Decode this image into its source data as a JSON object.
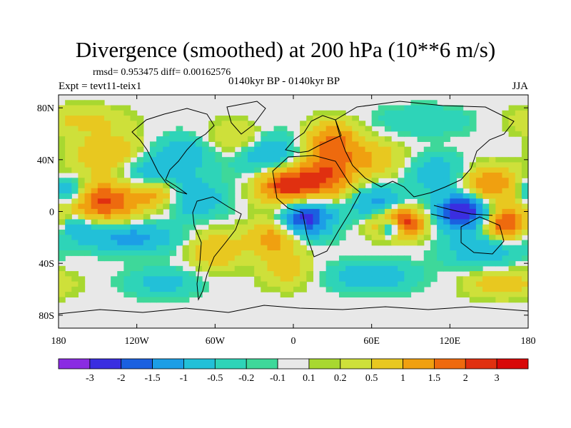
{
  "chart_data": {
    "type": "heatmap",
    "title": "Divergence (smoothed) at 200 hPa (10**6 m/s)",
    "stats_text": "rmsd= 0.953475 diff= 0.00162576",
    "experiment": "Expt = tevt11-teix1",
    "period": "0140kyr BP - 0140kyr BP",
    "season": "JJA",
    "xlim": [
      -180,
      180
    ],
    "ylim": [
      -90,
      90
    ],
    "x_ticks": [
      {
        "value": -180,
        "label": "180"
      },
      {
        "value": -120,
        "label": "120W"
      },
      {
        "value": -60,
        "label": "60W"
      },
      {
        "value": 0,
        "label": "0"
      },
      {
        "value": 60,
        "label": "60E"
      },
      {
        "value": 120,
        "label": "120E"
      },
      {
        "value": 180,
        "label": "180"
      }
    ],
    "y_ticks": [
      {
        "value": 80,
        "label": "80N"
      },
      {
        "value": 40,
        "label": "40N"
      },
      {
        "value": 0,
        "label": "0"
      },
      {
        "value": -40,
        "label": "40S"
      },
      {
        "value": -80,
        "label": "80S"
      }
    ],
    "colorbar": {
      "colors": [
        "#8a2be2",
        "#3a2ee0",
        "#1a60e0",
        "#1c9ee6",
        "#22c0d8",
        "#2ed4b8",
        "#3ed89a",
        "#e8e8e8",
        "#a8d830",
        "#cee03a",
        "#e8c820",
        "#f0a010",
        "#ee6a0e",
        "#e03010",
        "#d80808"
      ],
      "labels": [
        "-3",
        "-2",
        "-1.5",
        "-1",
        "-0.5",
        "-0.2",
        "-0.1",
        "0.1",
        "0.2",
        "0.5",
        "1",
        "1.5",
        "2",
        "3"
      ]
    },
    "features": [
      {
        "lon": -150,
        "lat": 8,
        "v": 2.2,
        "sx": 22,
        "sy": 12
      },
      {
        "lon": -173,
        "lat": 15,
        "v": -1.8,
        "sx": 12,
        "sy": 8
      },
      {
        "lon": -172,
        "lat": -10,
        "v": -1.4,
        "sx": 14,
        "sy": 8
      },
      {
        "lon": -140,
        "lat": 45,
        "v": 1.0,
        "sx": 20,
        "sy": 10
      },
      {
        "lon": -110,
        "lat": 30,
        "v": -1.0,
        "sx": 18,
        "sy": 10
      },
      {
        "lon": -105,
        "lat": 15,
        "v": 1.2,
        "sx": 12,
        "sy": 8
      },
      {
        "lon": -125,
        "lat": -20,
        "v": -1.3,
        "sx": 24,
        "sy": 8
      },
      {
        "lon": -75,
        "lat": 10,
        "v": -1.0,
        "sx": 16,
        "sy": 10
      },
      {
        "lon": -85,
        "lat": 45,
        "v": -0.8,
        "sx": 18,
        "sy": 10
      },
      {
        "lon": -40,
        "lat": 55,
        "v": 0.8,
        "sx": 18,
        "sy": 10
      },
      {
        "lon": -20,
        "lat": 45,
        "v": -1.2,
        "sx": 18,
        "sy": 12
      },
      {
        "lon": -5,
        "lat": 20,
        "v": 2.3,
        "sx": 16,
        "sy": 10
      },
      {
        "lon": 25,
        "lat": 28,
        "v": 1.8,
        "sx": 16,
        "sy": 12
      },
      {
        "lon": 10,
        "lat": -5,
        "v": -2.3,
        "sx": 14,
        "sy": 10
      },
      {
        "lon": -15,
        "lat": -20,
        "v": 1.3,
        "sx": 14,
        "sy": 10
      },
      {
        "lon": 30,
        "lat": 55,
        "v": 1.6,
        "sx": 14,
        "sy": 10
      },
      {
        "lon": 60,
        "lat": 40,
        "v": 0.9,
        "sx": 18,
        "sy": 10
      },
      {
        "lon": 65,
        "lat": 5,
        "v": -1.4,
        "sx": 14,
        "sy": 10
      },
      {
        "lon": 80,
        "lat": -8,
        "v": 2.8,
        "sx": 14,
        "sy": 8
      },
      {
        "lon": 75,
        "lat": -12,
        "v": -2.5,
        "sx": 6,
        "sy": 5
      },
      {
        "lon": 110,
        "lat": 30,
        "v": -0.9,
        "sx": 16,
        "sy": 10
      },
      {
        "lon": 130,
        "lat": 0,
        "v": -2.8,
        "sx": 14,
        "sy": 10
      },
      {
        "lon": 150,
        "lat": 20,
        "v": 1.6,
        "sx": 16,
        "sy": 10
      },
      {
        "lon": 165,
        "lat": -10,
        "v": 2.4,
        "sx": 14,
        "sy": 8
      },
      {
        "lon": 145,
        "lat": -30,
        "v": -0.9,
        "sx": 20,
        "sy": 10
      },
      {
        "lon": -60,
        "lat": -30,
        "v": 1.0,
        "sx": 14,
        "sy": 10
      },
      {
        "lon": -160,
        "lat": 70,
        "v": 0.6,
        "sx": 24,
        "sy": 8
      },
      {
        "lon": 60,
        "lat": -50,
        "v": -0.9,
        "sx": 24,
        "sy": 8
      },
      {
        "lon": 160,
        "lat": -55,
        "v": 0.8,
        "sx": 20,
        "sy": 8
      },
      {
        "lon": -100,
        "lat": -55,
        "v": -0.7,
        "sx": 20,
        "sy": 8
      },
      {
        "lon": 100,
        "lat": 70,
        "v": -0.5,
        "sx": 26,
        "sy": 8
      },
      {
        "lon": -5,
        "lat": -45,
        "v": 0.7,
        "sx": 14,
        "sy": 10
      }
    ]
  }
}
